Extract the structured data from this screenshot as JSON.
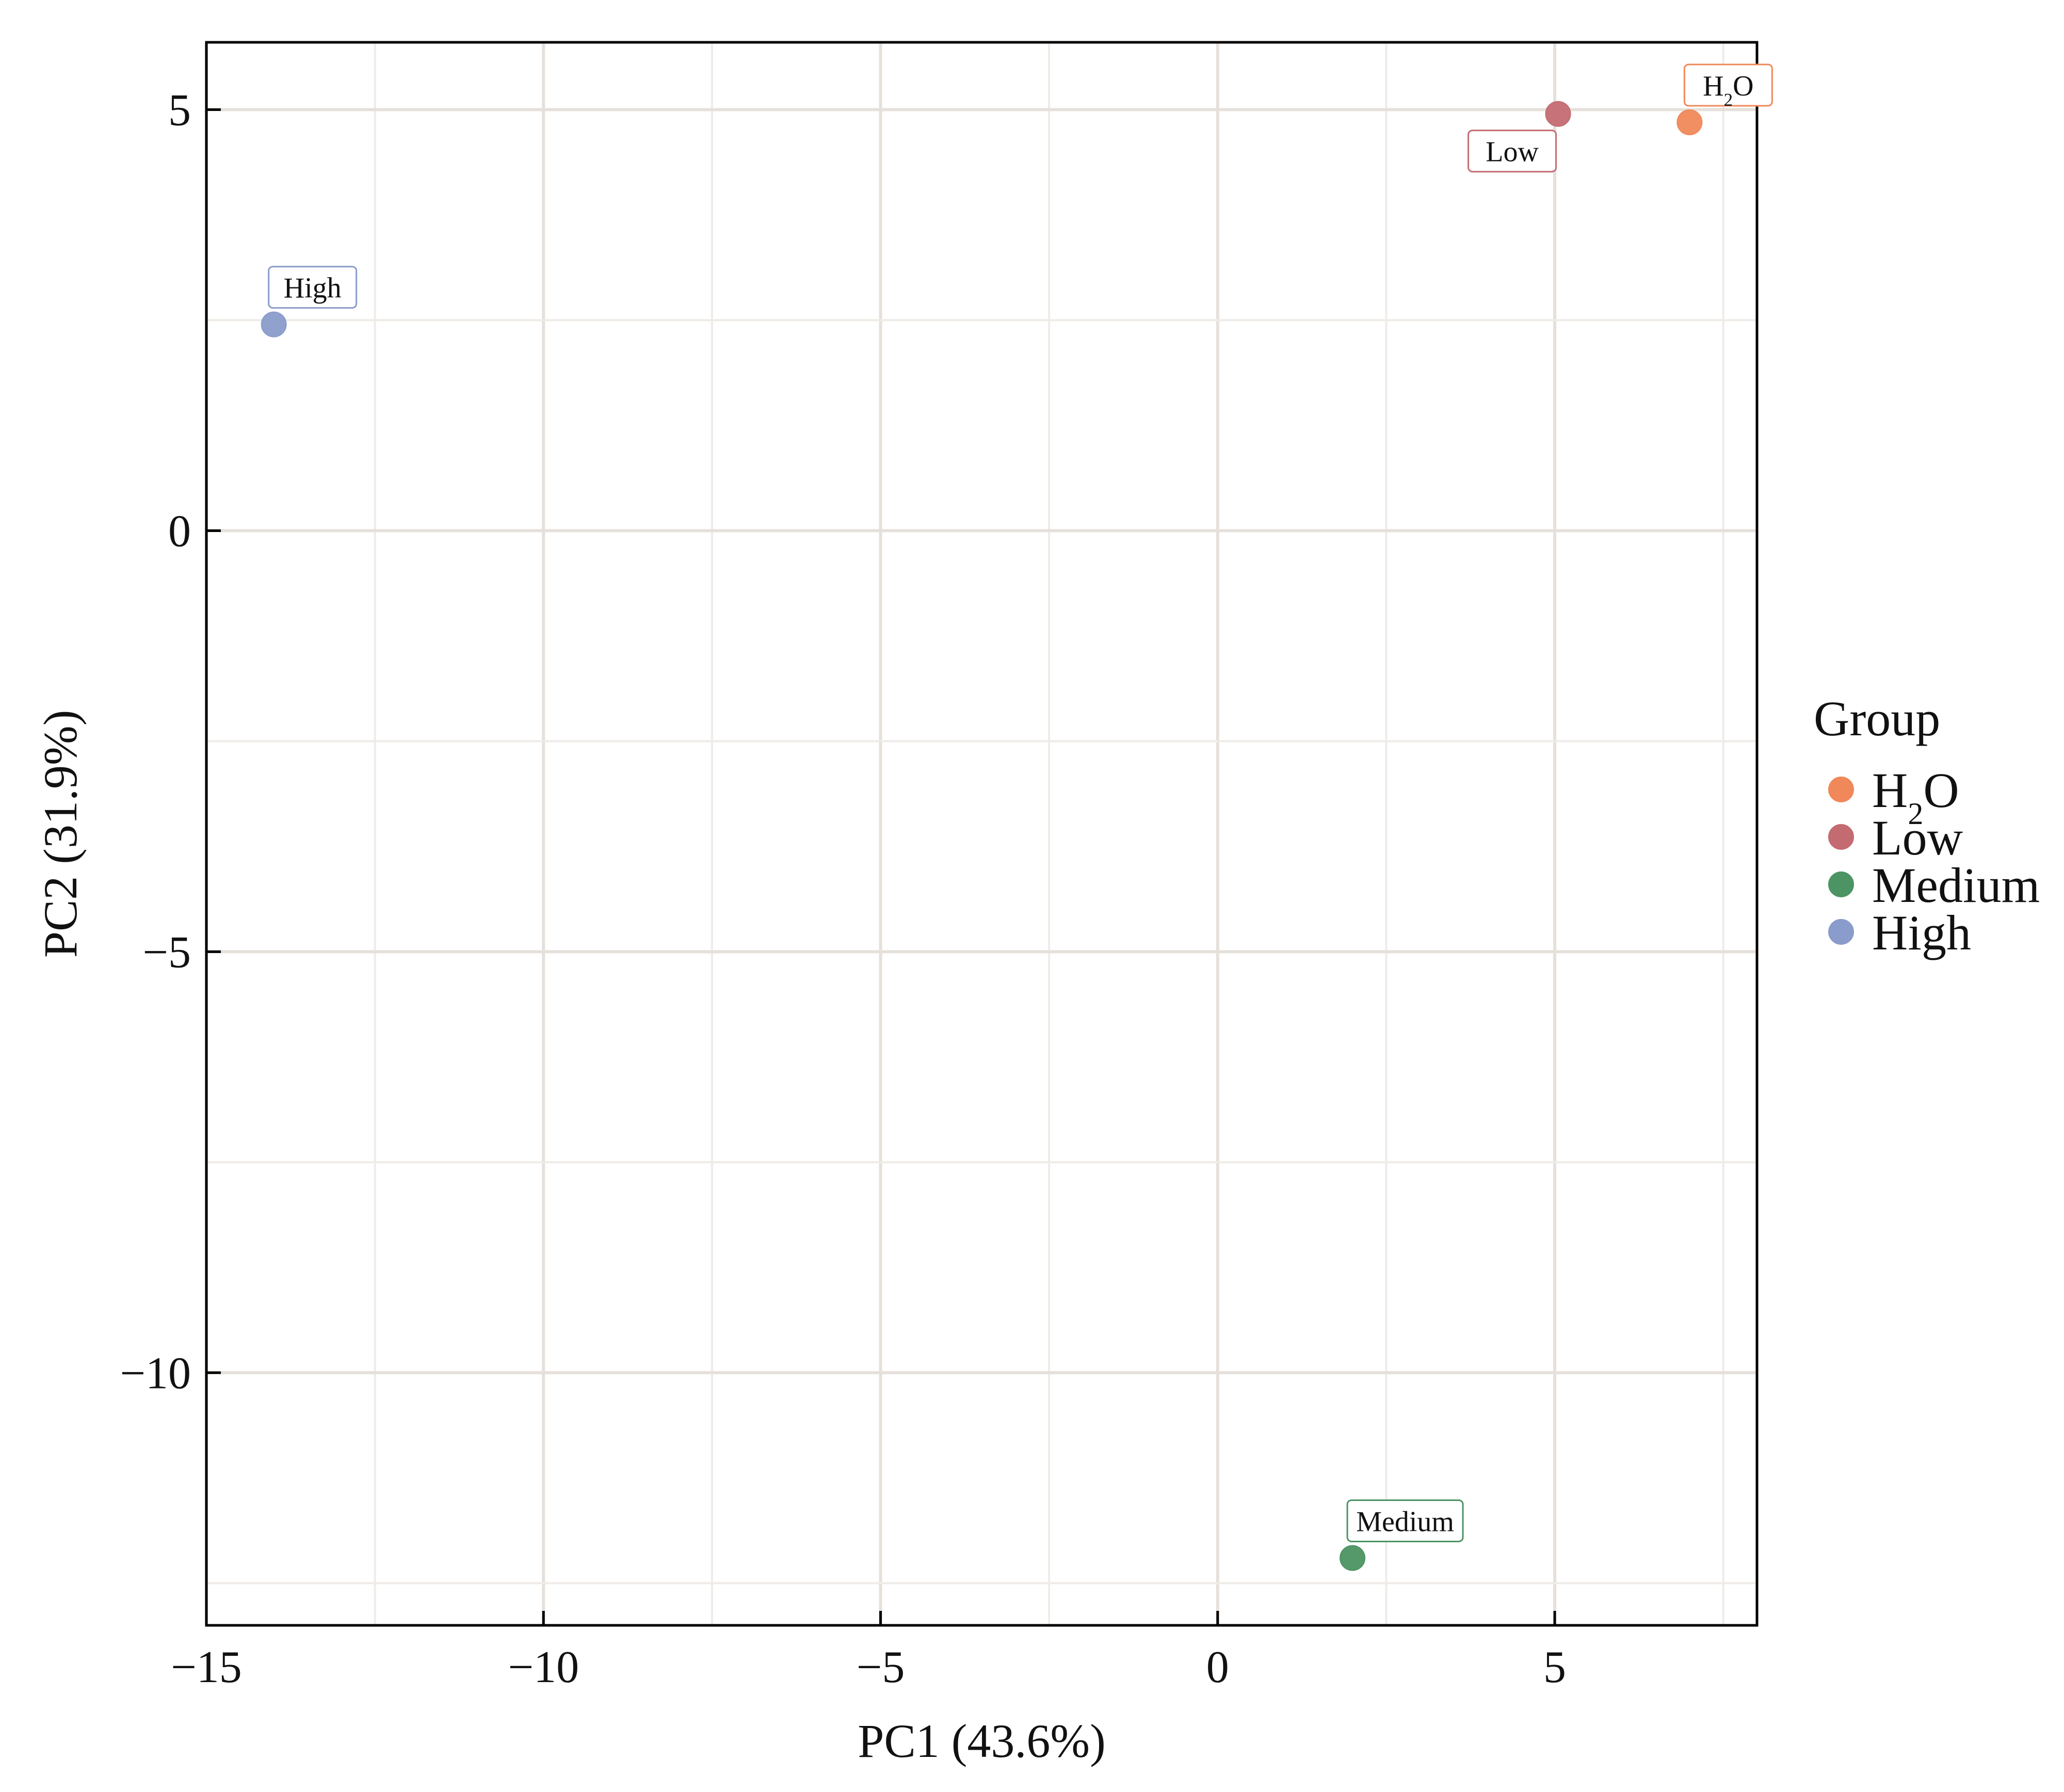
{
  "chart_data": {
    "type": "scatter",
    "xlabel": "PC1 (43.6%)",
    "ylabel": "PC2 (31.9%)",
    "xlim": [
      -15,
      8
    ],
    "ylim": [
      -13,
      5.8
    ],
    "x_ticks": [
      -15,
      -10,
      -5,
      0,
      5
    ],
    "x_tick_labels": [
      "−15",
      "−10",
      "−5",
      "0",
      "5"
    ],
    "y_ticks": [
      5,
      0,
      -5,
      -10
    ],
    "y_tick_labels": [
      "5",
      "0",
      "−5",
      "−10"
    ],
    "grid": true,
    "legend": {
      "title": "Group",
      "position": "right",
      "items": [
        {
          "label": "H2O",
          "base": "H",
          "sub": "2",
          "rest": "O",
          "color": "#f0885a"
        },
        {
          "label": "Low",
          "color": "#c46b72"
        },
        {
          "label": "Medium",
          "color": "#4c9463"
        },
        {
          "label": "High",
          "color": "#8a9ccb"
        }
      ]
    },
    "points": [
      {
        "group": "H2O",
        "label": "H2O",
        "base": "H",
        "sub": "2",
        "rest": "O",
        "x": 7.0,
        "y": 4.85,
        "color": "#f0885a",
        "label_pos": "above"
      },
      {
        "group": "Low",
        "label": "Low",
        "x": 5.05,
        "y": 4.95,
        "color": "#c46b72",
        "label_pos": "below-left"
      },
      {
        "group": "Medium",
        "label": "Medium",
        "x": 2.0,
        "y": -12.2,
        "color": "#4c9463",
        "label_pos": "above"
      },
      {
        "group": "High",
        "label": "High",
        "x": -14.0,
        "y": 2.45,
        "color": "#8a9ccb",
        "label_pos": "above"
      }
    ]
  }
}
